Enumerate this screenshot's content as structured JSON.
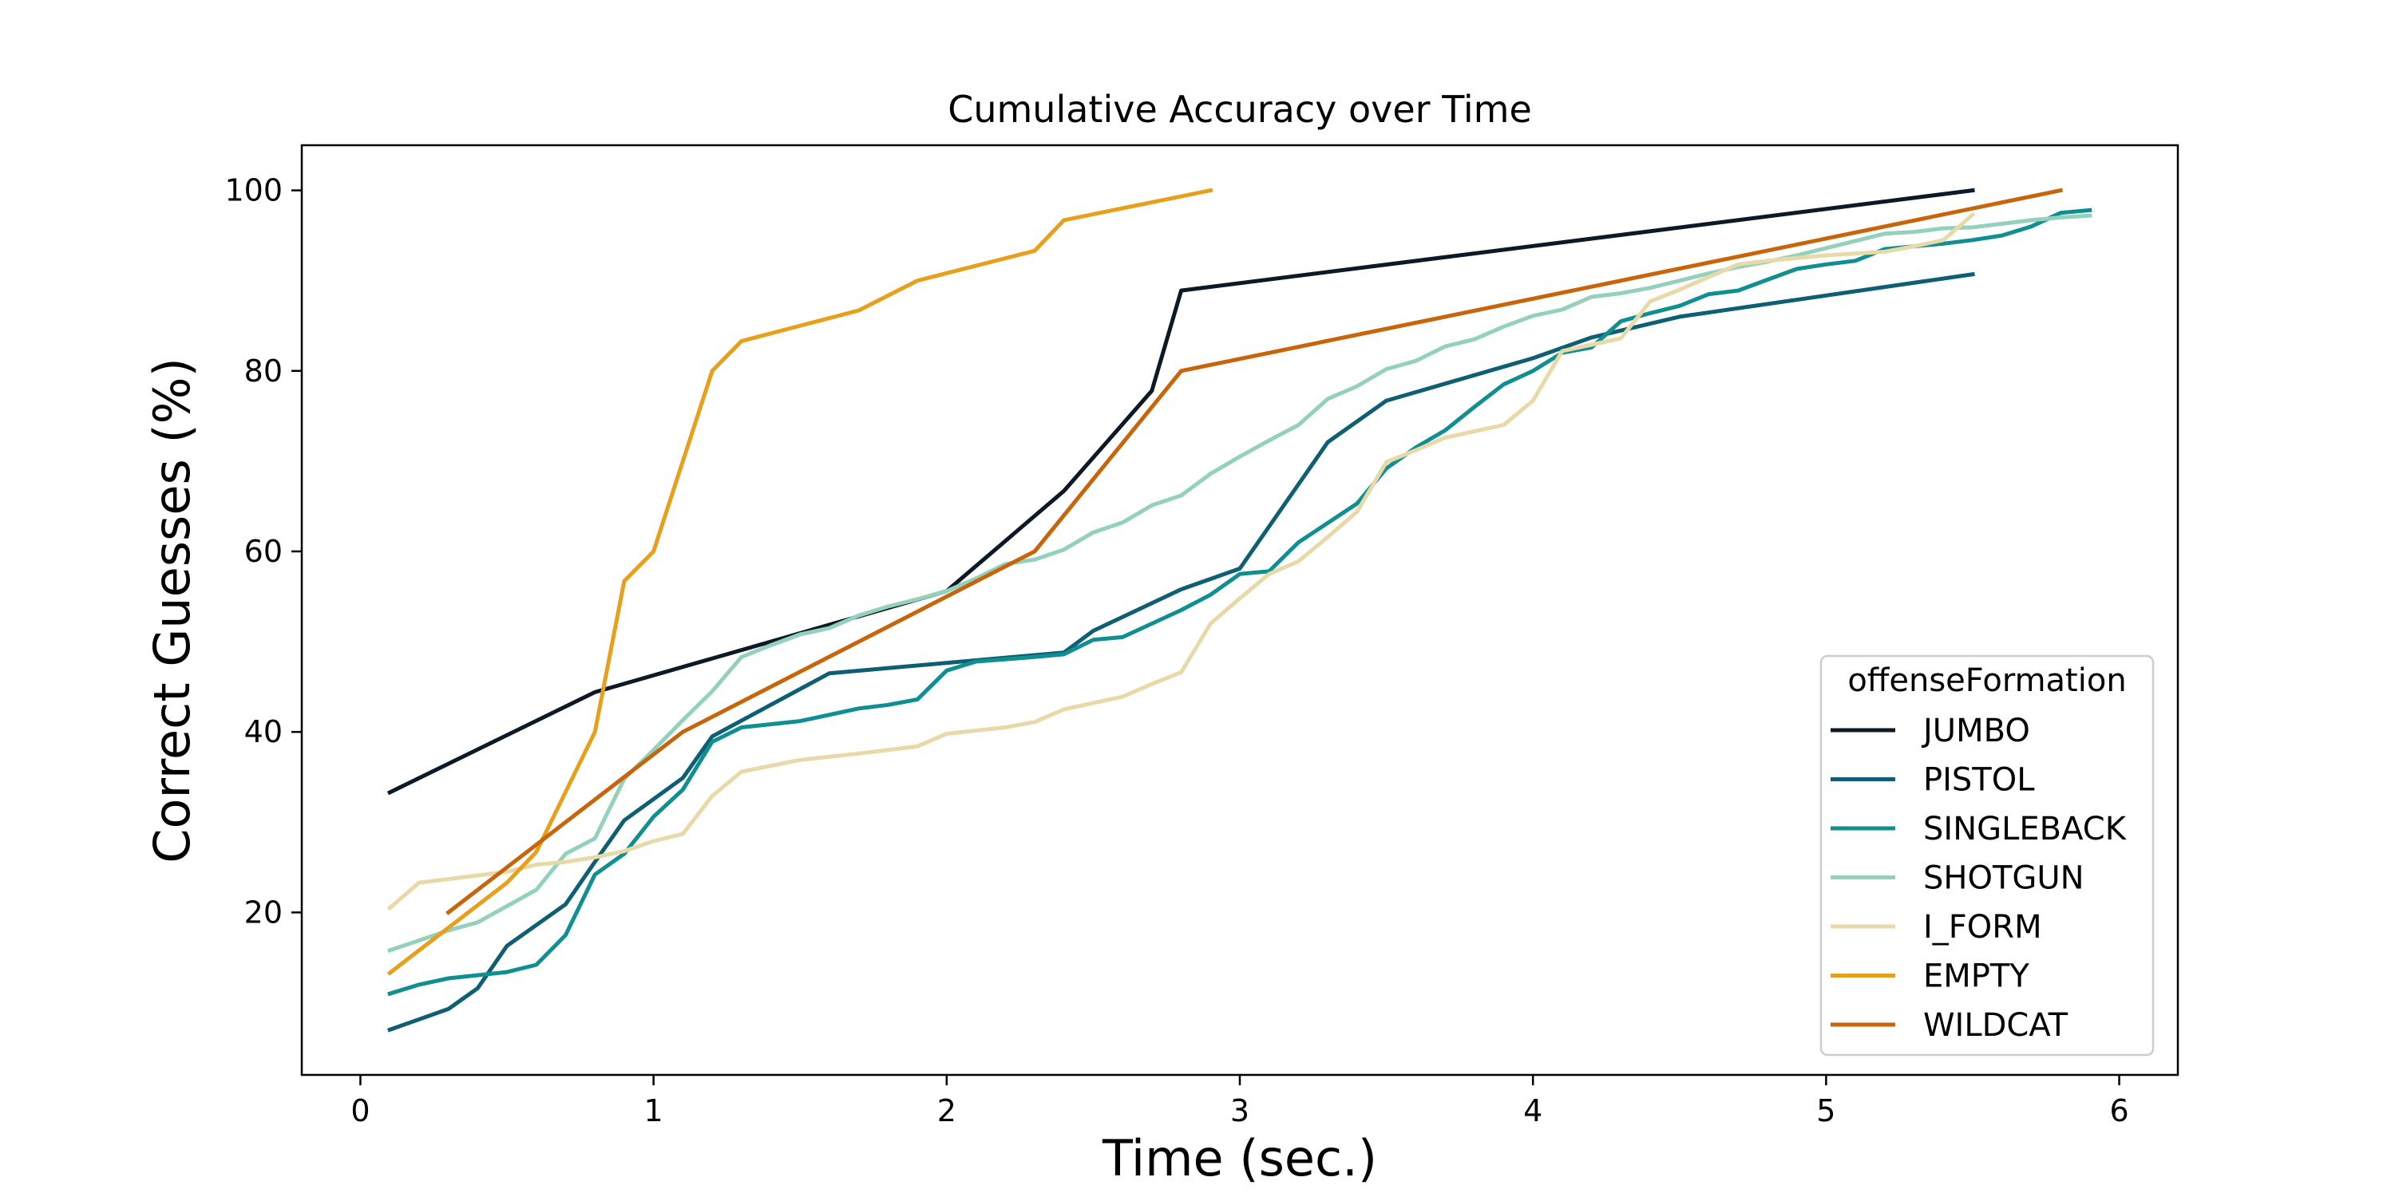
{
  "chart_data": {
    "type": "line",
    "title": "Cumulative Accuracy over Time",
    "xlabel": "Time (sec.)",
    "ylabel": "Correct Guesses (%)",
    "xlim": [
      -0.2,
      6.2
    ],
    "ylim": [
      2,
      105
    ],
    "x_ticks": [
      0,
      1,
      2,
      3,
      4,
      5,
      6
    ],
    "y_ticks": [
      20,
      40,
      60,
      80,
      100
    ],
    "grid": false,
    "legend": {
      "title": "offenseFormation",
      "position": "lower-right"
    },
    "series": [
      {
        "name": "JUMBO",
        "color": "#0b1a26",
        "x": [
          0.1,
          0.8,
          2.0,
          2.4,
          2.7,
          2.8,
          5.5
        ],
        "y": [
          33.3,
          44.4,
          55.6,
          66.7,
          77.8,
          88.9,
          100
        ]
      },
      {
        "name": "PISTOL",
        "color": "#0e5e74",
        "x": [
          0.1,
          0.3,
          0.4,
          0.5,
          0.7,
          0.8,
          0.9,
          1.1,
          1.2,
          1.6,
          2.4,
          2.5,
          2.8,
          3.0,
          3.3,
          3.5,
          4.0,
          4.2,
          4.5,
          5.5
        ],
        "y": [
          7.0,
          9.3,
          11.6,
          16.3,
          20.9,
          25.6,
          30.2,
          34.9,
          39.5,
          46.5,
          48.8,
          51.2,
          55.8,
          58.1,
          72.1,
          76.7,
          81.4,
          83.7,
          86.0,
          90.7
        ]
      },
      {
        "name": "SINGLEBACK",
        "color": "#0f8f91",
        "x": [
          0.1,
          0.2,
          0.3,
          0.5,
          0.6,
          0.7,
          0.8,
          0.9,
          1.0,
          1.1,
          1.2,
          1.3,
          1.5,
          1.7,
          1.8,
          1.9,
          2.0,
          2.1,
          2.3,
          2.4,
          2.5,
          2.6,
          2.7,
          2.8,
          2.9,
          3.0,
          3.1,
          3.2,
          3.4,
          3.5,
          3.6,
          3.7,
          3.8,
          3.9,
          4.0,
          4.1,
          4.2,
          4.3,
          4.4,
          4.5,
          4.6,
          4.7,
          4.8,
          4.9,
          5.0,
          5.1,
          5.2,
          5.3,
          5.4,
          5.5,
          5.6,
          5.7,
          5.8,
          5.9
        ],
        "y": [
          11.0,
          12.0,
          12.7,
          13.4,
          14.2,
          17.5,
          24.2,
          26.5,
          30.6,
          33.6,
          38.9,
          40.5,
          41.2,
          42.6,
          43.0,
          43.6,
          46.8,
          47.8,
          48.3,
          48.6,
          50.2,
          50.5,
          52.0,
          53.5,
          55.2,
          57.5,
          57.8,
          61.0,
          65.3,
          69.2,
          71.5,
          73.4,
          76.0,
          78.5,
          80.0,
          82.0,
          82.6,
          85.5,
          86.4,
          87.2,
          88.5,
          88.9,
          90.1,
          91.3,
          91.8,
          92.2,
          93.5,
          93.8,
          94.1,
          94.5,
          95.0,
          96.0,
          97.5,
          97.8
        ]
      },
      {
        "name": "SHOTGUN",
        "color": "#94d1bd",
        "x": [
          0.1,
          0.2,
          0.3,
          0.4,
          0.5,
          0.6,
          0.7,
          0.8,
          0.9,
          1.0,
          1.1,
          1.2,
          1.3,
          1.4,
          1.5,
          1.6,
          1.7,
          1.8,
          1.9,
          2.0,
          2.1,
          2.2,
          2.3,
          2.4,
          2.5,
          2.6,
          2.7,
          2.8,
          2.9,
          3.0,
          3.1,
          3.2,
          3.3,
          3.4,
          3.5,
          3.6,
          3.7,
          3.8,
          3.9,
          4.0,
          4.1,
          4.2,
          4.3,
          4.4,
          4.5,
          4.6,
          4.7,
          4.8,
          4.9,
          5.0,
          5.1,
          5.2,
          5.3,
          5.4,
          5.5,
          5.6,
          5.7,
          5.8,
          5.9
        ],
        "y": [
          15.8,
          16.9,
          18.0,
          18.9,
          20.7,
          22.5,
          26.5,
          28.2,
          34.8,
          38.0,
          41.3,
          44.5,
          48.3,
          49.6,
          50.8,
          51.5,
          52.9,
          53.9,
          54.7,
          55.6,
          57.0,
          58.6,
          59.1,
          60.2,
          62.1,
          63.2,
          65.1,
          66.2,
          68.6,
          70.5,
          72.3,
          74.0,
          76.9,
          78.3,
          80.2,
          81.1,
          82.7,
          83.5,
          84.9,
          86.1,
          86.8,
          88.2,
          88.6,
          89.2,
          90.0,
          90.8,
          91.5,
          92.1,
          92.8,
          93.6,
          94.4,
          95.2,
          95.4,
          95.8,
          95.9,
          96.3,
          96.7,
          97.0,
          97.2
        ]
      },
      {
        "name": "I_FORM",
        "color": "#e8d9a8",
        "x": [
          0.1,
          0.2,
          0.3,
          0.5,
          0.6,
          0.7,
          0.8,
          0.9,
          1.0,
          1.1,
          1.2,
          1.3,
          1.5,
          1.7,
          1.9,
          2.0,
          2.2,
          2.3,
          2.4,
          2.6,
          2.7,
          2.8,
          2.9,
          3.0,
          3.1,
          3.2,
          3.3,
          3.4,
          3.5,
          3.6,
          3.7,
          3.8,
          3.9,
          4.0,
          4.1,
          4.2,
          4.3,
          4.4,
          4.5,
          4.6,
          4.7,
          4.8,
          4.9,
          5.0,
          5.1,
          5.2,
          5.3,
          5.4,
          5.5
        ],
        "y": [
          20.5,
          23.3,
          23.7,
          24.5,
          25.3,
          25.6,
          26.1,
          26.8,
          27.9,
          28.7,
          32.9,
          35.6,
          36.9,
          37.6,
          38.4,
          39.8,
          40.5,
          41.1,
          42.5,
          43.9,
          45.3,
          46.6,
          52.0,
          54.8,
          57.5,
          58.9,
          61.6,
          64.4,
          69.9,
          71.2,
          72.6,
          73.3,
          74.0,
          76.7,
          82.2,
          82.9,
          83.6,
          87.7,
          89.0,
          90.4,
          91.8,
          92.2,
          92.5,
          92.8,
          93.0,
          93.2,
          93.8,
          94.5,
          97.3
        ]
      },
      {
        "name": "EMPTY",
        "color": "#e8a01c",
        "x": [
          0.1,
          0.5,
          0.6,
          0.8,
          0.9,
          1.0,
          1.2,
          1.3,
          1.7,
          1.9,
          2.3,
          2.4,
          2.9
        ],
        "y": [
          13.3,
          23.3,
          26.7,
          40.0,
          56.7,
          60.0,
          80.0,
          83.3,
          86.7,
          90.0,
          93.3,
          96.7,
          100
        ]
      },
      {
        "name": "WILDCAT",
        "color": "#c8650a",
        "x": [
          0.3,
          1.1,
          2.3,
          2.8,
          5.8
        ],
        "y": [
          20.0,
          40.0,
          60.0,
          80.0,
          100
        ]
      }
    ]
  }
}
